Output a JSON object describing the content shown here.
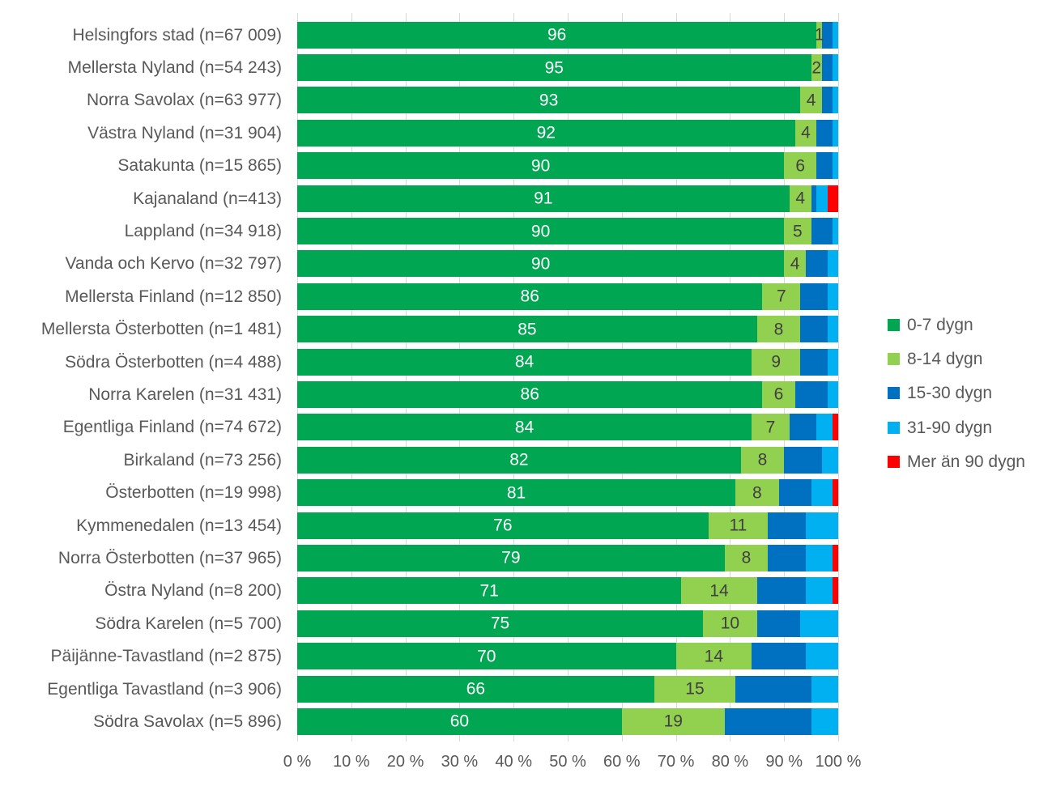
{
  "chart_data": {
    "type": "bar",
    "orientation": "horizontal",
    "stacked": true,
    "unit": "%",
    "grid": true,
    "legend_position": "right",
    "value_labels_shown_for_series": [
      "0-7 dygn",
      "8-14 dygn"
    ],
    "x_axis": {
      "min": 0,
      "max": 100,
      "tick_step": 10,
      "ticks": [
        "0 %",
        "10 %",
        "20 %",
        "30 %",
        "40 %",
        "50 %",
        "60 %",
        "70 %",
        "80 %",
        "90 %",
        "100 %"
      ]
    },
    "series": [
      {
        "name": "0-7 dygn",
        "color": "#00A651"
      },
      {
        "name": "8-14 dygn",
        "color": "#92D050"
      },
      {
        "name": "15-30 dygn",
        "color": "#0070C0"
      },
      {
        "name": "31-90 dygn",
        "color": "#00B0F0"
      },
      {
        "name": "Mer än 90 dygn",
        "color": "#FF0000"
      }
    ],
    "rows": [
      {
        "label": "Helsingfors stad (n=67 009)",
        "values": [
          96,
          1,
          2,
          1,
          0
        ]
      },
      {
        "label": "Mellersta Nyland (n=54 243)",
        "values": [
          95,
          2,
          2,
          1,
          0
        ]
      },
      {
        "label": "Norra Savolax (n=63 977)",
        "values": [
          93,
          4,
          2,
          1,
          0
        ]
      },
      {
        "label": "Västra Nyland (n=31 904)",
        "values": [
          92,
          4,
          3,
          1,
          0
        ]
      },
      {
        "label": "Satakunta (n=15 865)",
        "values": [
          90,
          6,
          3,
          1,
          0
        ]
      },
      {
        "label": "Kajanaland (n=413)",
        "values": [
          91,
          4,
          1,
          2,
          2
        ]
      },
      {
        "label": "Lappland (n=34 918)",
        "values": [
          90,
          5,
          4,
          1,
          0
        ]
      },
      {
        "label": "Vanda och Kervo (n=32 797)",
        "values": [
          90,
          4,
          4,
          2,
          0
        ]
      },
      {
        "label": "Mellersta Finland (n=12 850)",
        "values": [
          86,
          7,
          5,
          2,
          0
        ]
      },
      {
        "label": "Mellersta Österbotten (n=1 481)",
        "values": [
          85,
          8,
          5,
          2,
          0
        ]
      },
      {
        "label": "Södra Österbotten (n=4 488)",
        "values": [
          84,
          9,
          5,
          2,
          0
        ]
      },
      {
        "label": "Norra Karelen (n=31 431)",
        "values": [
          86,
          6,
          6,
          2,
          0
        ]
      },
      {
        "label": "Egentliga Finland (n=74 672)",
        "values": [
          84,
          7,
          5,
          3,
          1
        ]
      },
      {
        "label": "Birkaland (n=73 256)",
        "values": [
          82,
          8,
          7,
          3,
          0
        ]
      },
      {
        "label": "Österbotten (n=19 998)",
        "values": [
          81,
          8,
          6,
          4,
          1
        ]
      },
      {
        "label": "Kymmenedalen (n=13 454)",
        "values": [
          76,
          11,
          7,
          6,
          0
        ]
      },
      {
        "label": "Norra Österbotten (n=37 965)",
        "values": [
          79,
          8,
          7,
          5,
          1
        ]
      },
      {
        "label": "Östra Nyland (n=8 200)",
        "values": [
          71,
          14,
          9,
          5,
          1
        ]
      },
      {
        "label": "Södra Karelen (n=5 700)",
        "values": [
          75,
          10,
          8,
          7,
          0
        ]
      },
      {
        "label": "Päijänne-Tavastland (n=2 875)",
        "values": [
          70,
          14,
          10,
          6,
          0
        ]
      },
      {
        "label": "Egentliga Tavastland (n=3 906)",
        "values": [
          66,
          15,
          14,
          5,
          0
        ]
      },
      {
        "label": "Södra Savolax (n=5 896)",
        "values": [
          60,
          19,
          16,
          5,
          0
        ]
      }
    ]
  },
  "styles": {
    "grid_color": "#D9D9D9",
    "axis_text_color": "#595959",
    "category_text_color": "#595959",
    "label_on_green": "#FFFFFF",
    "label_on_light_green": "#404040",
    "background": "#FFFFFF"
  }
}
